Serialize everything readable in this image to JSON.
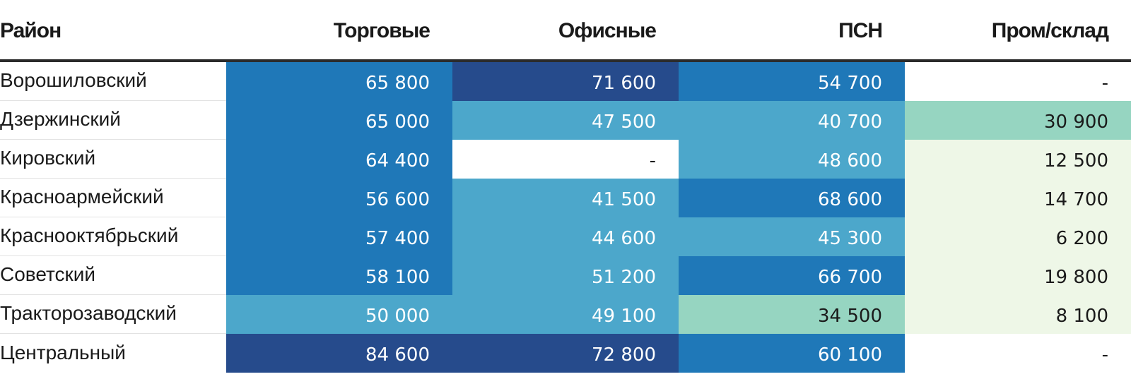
{
  "chart_data": {
    "type": "table",
    "columns": [
      "Район",
      "Торговые",
      "Офисные",
      "ПСН",
      "Пром/склад"
    ],
    "rows": [
      {
        "district": "Ворошиловский",
        "values": [
          "65 800",
          "71 600",
          "54 700",
          "-"
        ],
        "colors": [
          "#1f78b8",
          "#264b8c",
          "#1f78b8",
          "#ffffff"
        ],
        "text_colors": [
          "#ffffff",
          "#ffffff",
          "#ffffff",
          "#1a1a1a"
        ]
      },
      {
        "district": "Дзержинский",
        "values": [
          "65 000",
          "47 500",
          "40 700",
          "30 900"
        ],
        "colors": [
          "#1f78b8",
          "#4ca7cb",
          "#4ca7cb",
          "#96d5c1"
        ],
        "text_colors": [
          "#ffffff",
          "#ffffff",
          "#ffffff",
          "#1a1a1a"
        ]
      },
      {
        "district": "Кировский",
        "values": [
          "64 400",
          "-",
          "48 600",
          "12 500"
        ],
        "colors": [
          "#1f78b8",
          "#ffffff",
          "#4ca7cb",
          "#eef7e7"
        ],
        "text_colors": [
          "#ffffff",
          "#1a1a1a",
          "#ffffff",
          "#1a1a1a"
        ]
      },
      {
        "district": "Красноармейский",
        "values": [
          "56 600",
          "41 500",
          "68 600",
          "14 700"
        ],
        "colors": [
          "#1f78b8",
          "#4ca7cb",
          "#1f78b8",
          "#eef7e7"
        ],
        "text_colors": [
          "#ffffff",
          "#ffffff",
          "#ffffff",
          "#1a1a1a"
        ]
      },
      {
        "district": "Краснооктябрьский",
        "values": [
          "57 400",
          "44 600",
          "45 300",
          "6 200"
        ],
        "colors": [
          "#1f78b8",
          "#4ca7cb",
          "#4ca7cb",
          "#eef7e7"
        ],
        "text_colors": [
          "#ffffff",
          "#ffffff",
          "#ffffff",
          "#1a1a1a"
        ]
      },
      {
        "district": "Советский",
        "values": [
          "58 100",
          "51 200",
          "66 700",
          "19 800"
        ],
        "colors": [
          "#1f78b8",
          "#4ca7cb",
          "#1f78b8",
          "#eef7e7"
        ],
        "text_colors": [
          "#ffffff",
          "#ffffff",
          "#ffffff",
          "#1a1a1a"
        ]
      },
      {
        "district": "Тракторозаводский",
        "values": [
          "50 000",
          "49 100",
          "34 500",
          "8 100"
        ],
        "colors": [
          "#4ca7cb",
          "#4ca7cb",
          "#96d5c1",
          "#eef7e7"
        ],
        "text_colors": [
          "#ffffff",
          "#ffffff",
          "#1a1a1a",
          "#1a1a1a"
        ]
      },
      {
        "district": "Центральный",
        "values": [
          "84 600",
          "72 800",
          "60 100",
          "-"
        ],
        "colors": [
          "#264b8c",
          "#264b8c",
          "#1f78b8",
          "#ffffff"
        ],
        "text_colors": [
          "#ffffff",
          "#ffffff",
          "#ffffff",
          "#1a1a1a"
        ]
      }
    ]
  }
}
